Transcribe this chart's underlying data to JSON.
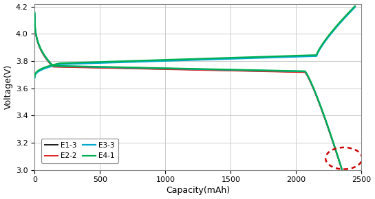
{
  "xlabel": "Capacity(mAh)",
  "ylabel": "Voltage(V)",
  "xlim": [
    0,
    2500
  ],
  "ylim": [
    3.0,
    4.22
  ],
  "yticks": [
    3.0,
    3.2,
    3.4,
    3.6,
    3.8,
    4.0,
    4.2
  ],
  "xticks": [
    0,
    500,
    1000,
    1500,
    2000,
    2500
  ],
  "e1_3_color": "#1a1a1a",
  "e2_2_color": "#dd2222",
  "e3_3_color": "#00aacc",
  "e4_1_color": "#00b050",
  "circle_color": "#cc0000",
  "background_color": "#ffffff",
  "grid_color": "#cccccc",
  "figsize": [
    5.45,
    2.9
  ],
  "dpi": 100
}
